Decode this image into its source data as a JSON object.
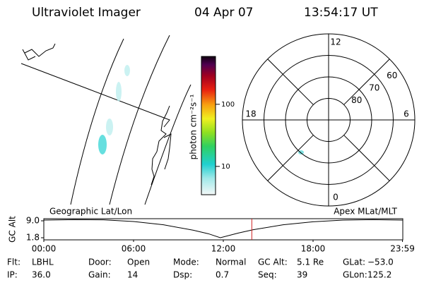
{
  "header": {
    "title": "Ultraviolet Imager",
    "date": "04 Apr 07",
    "time": "13:54:17 UT"
  },
  "colorbar": {
    "label": "photon cm⁻²s⁻¹",
    "log": true,
    "lim": [
      3.5,
      590
    ],
    "ticks": [
      10,
      100
    ]
  },
  "polar": {
    "mlt_labels": [
      12,
      6,
      0,
      18
    ],
    "rings": [
      80,
      70,
      60
    ],
    "lat_lim": [
      90,
      50
    ]
  },
  "timeline": {
    "left_label": "Geographic Lat/Lon",
    "right_label": "Apex MLat/MLT",
    "ylabel": "GC Alt",
    "ylim": [
      0.9,
      9.9
    ],
    "yticks": [
      {
        "value": 9.0,
        "label": "9.0"
      },
      {
        "value": 1.8,
        "label": "1.8"
      }
    ],
    "xlim": [
      0,
      24
    ],
    "xticks": [
      {
        "value": 0,
        "label": "00:00"
      },
      {
        "value": 6,
        "label": "06:00"
      },
      {
        "value": 12,
        "label": "12:00"
      },
      {
        "value": 18,
        "label": "18:00"
      },
      {
        "value": 23.98,
        "label": "23:59"
      }
    ],
    "x": [
      0,
      2,
      4,
      6,
      8,
      10,
      11,
      11.8,
      13,
      14,
      16,
      18,
      20,
      22,
      23.98
    ],
    "altitude": [
      9.3,
      9.5,
      9.4,
      8.7,
      7.3,
      5.0,
      3.5,
      1.8,
      3.8,
      5.2,
      7.3,
      8.6,
      9.3,
      9.5,
      9.3
    ],
    "current_hour": 13.905
  },
  "info": [
    [
      [
        "Flt:",
        "LBHL"
      ],
      [
        "Door:",
        "Open"
      ],
      [
        "Mode:",
        "Normal"
      ],
      [
        "GC Alt:",
        "5.1 Re"
      ],
      [
        "GLat:",
        "−53.0"
      ]
    ],
    [
      [
        "IP:",
        "36.0"
      ],
      [
        "Gain:",
        "14"
      ],
      [
        "Dsp:",
        "0.7"
      ],
      [
        "Seq:",
        "39"
      ],
      [
        "GLon:",
        "125.2"
      ]
    ]
  ]
}
